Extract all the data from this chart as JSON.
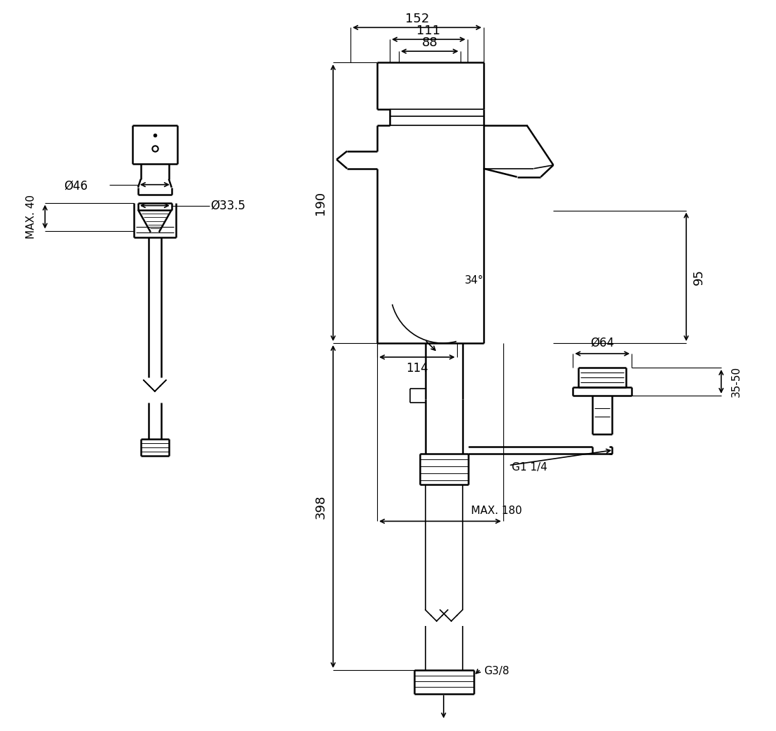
{
  "bg_color": "#ffffff",
  "line_color": "#000000",
  "fig_width": 11.07,
  "fig_height": 10.44,
  "dim_152": "152",
  "dim_111": "111",
  "dim_88": "88",
  "dim_190": "190",
  "dim_114": "114",
  "dim_34": "34°",
  "dim_95": "95",
  "dim_64": "Ø64",
  "dim_398": "398",
  "dim_g14": "G1 1/4",
  "dim_max180": "MAX. 180",
  "dim_g38": "G3/8",
  "dim_3550": "35-50",
  "dim_46": "Ø46",
  "dim_335": "Ø33.5",
  "dim_max40": "MAX. 40"
}
